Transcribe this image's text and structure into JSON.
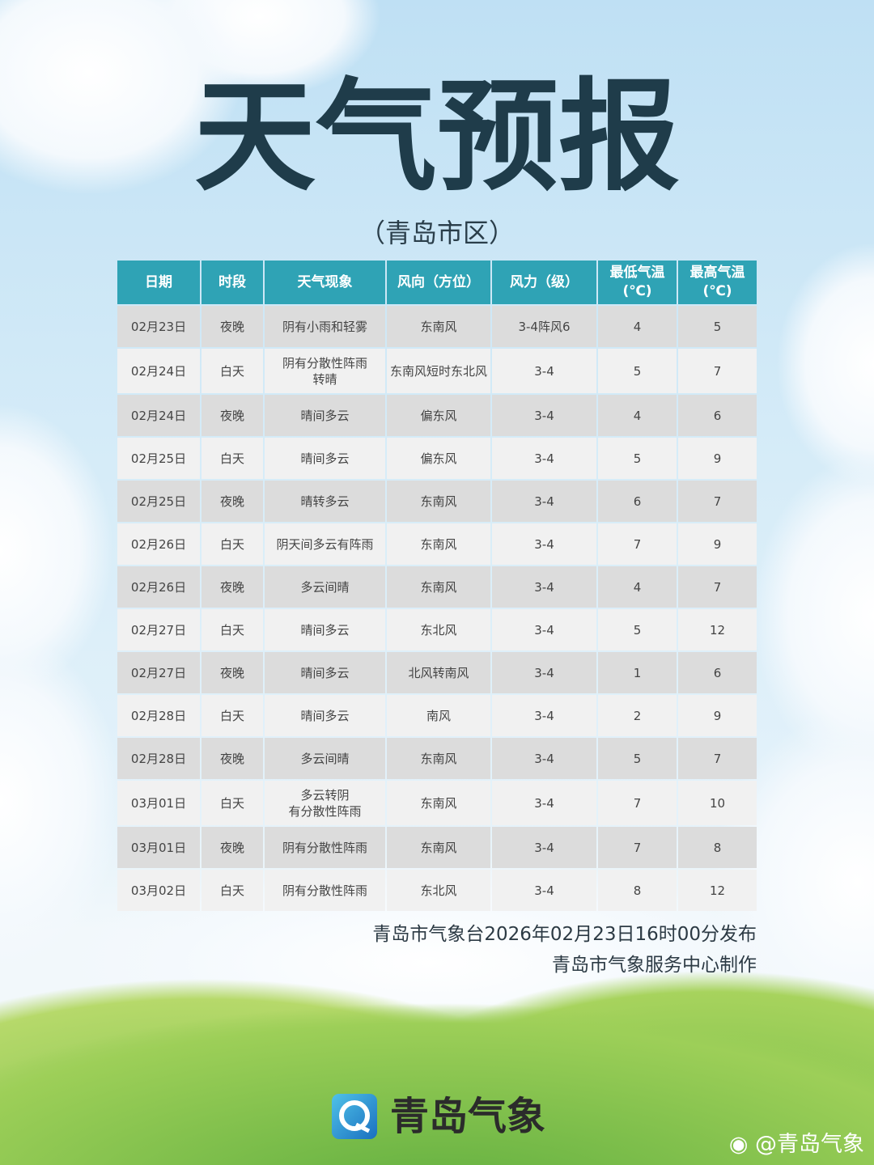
{
  "title": "天气预报",
  "subtitle": "（青岛市区）",
  "colors": {
    "header": "#2fa3b5",
    "row_dark": "#dcdcdc",
    "row_light": "#f1f1f1",
    "title": "#1f3c4a"
  },
  "table": {
    "headers": [
      "日期",
      "时段",
      "天气现象",
      "风向（方位）",
      "风力（级）",
      "最低气温\n(℃)",
      "最高气温\n(℃)"
    ],
    "rows": [
      [
        "02月23日",
        "夜晚",
        "阴有小雨和轻雾",
        "东南风",
        "3-4阵风6",
        "4",
        "5"
      ],
      [
        "02月24日",
        "白天",
        "阴有分散性阵雨\n转晴",
        "东南风短时东北风",
        "3-4",
        "5",
        "7"
      ],
      [
        "02月24日",
        "夜晚",
        "晴间多云",
        "偏东风",
        "3-4",
        "4",
        "6"
      ],
      [
        "02月25日",
        "白天",
        "晴间多云",
        "偏东风",
        "3-4",
        "5",
        "9"
      ],
      [
        "02月25日",
        "夜晚",
        "晴转多云",
        "东南风",
        "3-4",
        "6",
        "7"
      ],
      [
        "02月26日",
        "白天",
        "阴天间多云有阵雨",
        "东南风",
        "3-4",
        "7",
        "9"
      ],
      [
        "02月26日",
        "夜晚",
        "多云间晴",
        "东南风",
        "3-4",
        "4",
        "7"
      ],
      [
        "02月27日",
        "白天",
        "晴间多云",
        "东北风",
        "3-4",
        "5",
        "12"
      ],
      [
        "02月27日",
        "夜晚",
        "晴间多云",
        "北风转南风",
        "3-4",
        "1",
        "6"
      ],
      [
        "02月28日",
        "白天",
        "晴间多云",
        "南风",
        "3-4",
        "2",
        "9"
      ],
      [
        "02月28日",
        "夜晚",
        "多云间晴",
        "东南风",
        "3-4",
        "5",
        "7"
      ],
      [
        "03月01日",
        "白天",
        "多云转阴\n有分散性阵雨",
        "东南风",
        "3-4",
        "7",
        "10"
      ],
      [
        "03月01日",
        "夜晚",
        "阴有分散性阵雨",
        "东南风",
        "3-4",
        "7",
        "8"
      ],
      [
        "03月02日",
        "白天",
        "阴有分散性阵雨",
        "东北风",
        "3-4",
        "8",
        "12"
      ]
    ]
  },
  "footer": {
    "issued": "青岛市气象台2026年02月23日16时00分发布",
    "producer": "青岛市气象服务中心制作"
  },
  "logo": {
    "text": "青岛气象",
    "icon": "qingdao-weather-logo-icon"
  },
  "weibo": {
    "handle": "@青岛气象",
    "icon": "weibo-icon"
  }
}
